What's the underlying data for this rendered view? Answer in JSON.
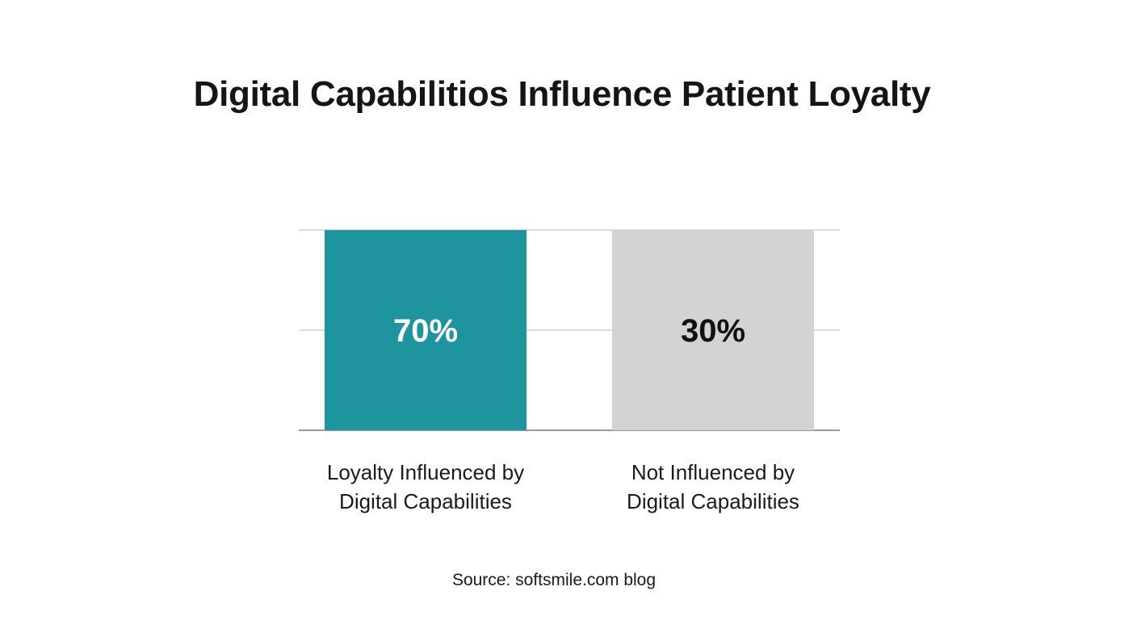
{
  "chart_data": {
    "type": "bar",
    "title": "Digital Capabilitios Influence Patient Loyalty",
    "categories": [
      [
        "Loyalty Influenced by",
        "Digital Capabilities"
      ],
      [
        "Not Influenced by",
        "Digital Capabilities"
      ]
    ],
    "values": [
      70,
      30
    ],
    "value_labels": [
      "70%",
      "30%"
    ],
    "bar_colors": [
      "#1e959e",
      "#d3d3d3"
    ],
    "value_label_colors": [
      "#ffffff",
      "#111111"
    ],
    "gridline_color": "#cfcfcf",
    "baseline_color": "#9a9a9a",
    "grid": true,
    "xlabel": "",
    "ylabel": "",
    "note": "Bars are drawn at equal height; value shown by label."
  },
  "source": "Source: softsmile.com blog"
}
